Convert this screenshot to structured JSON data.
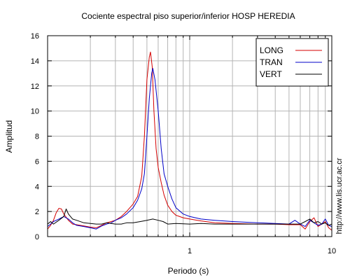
{
  "chart_data": {
    "type": "line",
    "title": "Cociente espectral piso superior/inferior  HOSP HEREDIA",
    "xlabel": "Periodo (s)",
    "ylabel": "Amplitud",
    "x_scale": "log",
    "xlim": [
      0.1,
      10
    ],
    "ylim": [
      0,
      16
    ],
    "yticks": [
      0,
      2,
      4,
      6,
      8,
      10,
      12,
      14,
      16
    ],
    "xtick_labels": [
      {
        "value": 1,
        "label": "1"
      },
      {
        "value": 10,
        "label": "10"
      }
    ],
    "grid": true,
    "legend": "top-right",
    "credit": "http://www.lis.ucr.ac.cr",
    "series": [
      {
        "name": "LONG",
        "color": "#d40000",
        "points": [
          [
            0.1,
            0.6
          ],
          [
            0.105,
            0.9
          ],
          [
            0.11,
            1.3
          ],
          [
            0.115,
            1.9
          ],
          [
            0.12,
            2.25
          ],
          [
            0.125,
            2.2
          ],
          [
            0.13,
            1.8
          ],
          [
            0.14,
            1.3
          ],
          [
            0.15,
            1.0
          ],
          [
            0.16,
            0.95
          ],
          [
            0.18,
            0.85
          ],
          [
            0.2,
            0.75
          ],
          [
            0.22,
            0.7
          ],
          [
            0.24,
            0.9
          ],
          [
            0.26,
            1.1
          ],
          [
            0.28,
            1.2
          ],
          [
            0.3,
            1.3
          ],
          [
            0.33,
            1.6
          ],
          [
            0.36,
            2.0
          ],
          [
            0.4,
            2.6
          ],
          [
            0.43,
            3.2
          ],
          [
            0.46,
            4.8
          ],
          [
            0.48,
            8.0
          ],
          [
            0.5,
            12.5
          ],
          [
            0.52,
            14.3
          ],
          [
            0.53,
            14.7
          ],
          [
            0.545,
            13.5
          ],
          [
            0.56,
            10.0
          ],
          [
            0.58,
            7.0
          ],
          [
            0.6,
            5.5
          ],
          [
            0.63,
            4.3
          ],
          [
            0.66,
            3.3
          ],
          [
            0.7,
            2.5
          ],
          [
            0.75,
            2.0
          ],
          [
            0.8,
            1.7
          ],
          [
            0.9,
            1.5
          ],
          [
            1.0,
            1.4
          ],
          [
            1.2,
            1.25
          ],
          [
            1.5,
            1.1
          ],
          [
            2.0,
            1.05
          ],
          [
            3.0,
            1.0
          ],
          [
            4.0,
            1.0
          ],
          [
            5.0,
            0.95
          ],
          [
            6.0,
            0.95
          ],
          [
            6.5,
            0.6
          ],
          [
            7.0,
            1.2
          ],
          [
            7.5,
            1.5
          ],
          [
            8.0,
            0.8
          ],
          [
            8.5,
            1.0
          ],
          [
            9.0,
            1.2
          ],
          [
            9.5,
            0.7
          ],
          [
            10,
            0.5
          ]
        ]
      },
      {
        "name": "TRAN",
        "color": "#0000c8",
        "points": [
          [
            0.1,
            0.8
          ],
          [
            0.105,
            1.0
          ],
          [
            0.11,
            1.2
          ],
          [
            0.12,
            1.4
          ],
          [
            0.13,
            1.6
          ],
          [
            0.14,
            1.4
          ],
          [
            0.15,
            1.1
          ],
          [
            0.16,
            0.9
          ],
          [
            0.18,
            0.8
          ],
          [
            0.2,
            0.7
          ],
          [
            0.22,
            0.6
          ],
          [
            0.24,
            0.85
          ],
          [
            0.26,
            1.0
          ],
          [
            0.28,
            1.1
          ],
          [
            0.3,
            1.3
          ],
          [
            0.33,
            1.5
          ],
          [
            0.36,
            1.8
          ],
          [
            0.4,
            2.3
          ],
          [
            0.43,
            2.9
          ],
          [
            0.46,
            3.8
          ],
          [
            0.48,
            5.0
          ],
          [
            0.5,
            8.0
          ],
          [
            0.52,
            11.0
          ],
          [
            0.54,
            13.0
          ],
          [
            0.55,
            13.4
          ],
          [
            0.57,
            12.5
          ],
          [
            0.6,
            10.0
          ],
          [
            0.63,
            7.0
          ],
          [
            0.66,
            5.0
          ],
          [
            0.7,
            4.0
          ],
          [
            0.75,
            3.0
          ],
          [
            0.8,
            2.3
          ],
          [
            0.9,
            1.8
          ],
          [
            1.0,
            1.6
          ],
          [
            1.2,
            1.4
          ],
          [
            1.5,
            1.3
          ],
          [
            2.0,
            1.2
          ],
          [
            3.0,
            1.1
          ],
          [
            4.0,
            1.05
          ],
          [
            5.0,
            1.0
          ],
          [
            5.5,
            1.3
          ],
          [
            6.0,
            1.0
          ],
          [
            6.5,
            0.8
          ],
          [
            7.0,
            1.3
          ],
          [
            7.5,
            1.1
          ],
          [
            8.0,
            0.9
          ],
          [
            8.5,
            1.0
          ],
          [
            9.0,
            1.4
          ],
          [
            9.5,
            0.9
          ],
          [
            10,
            0.8
          ]
        ]
      },
      {
        "name": "VERT",
        "color": "#000000",
        "points": [
          [
            0.1,
            1.0
          ],
          [
            0.105,
            1.2
          ],
          [
            0.11,
            1.0
          ],
          [
            0.12,
            1.3
          ],
          [
            0.13,
            1.6
          ],
          [
            0.135,
            2.2
          ],
          [
            0.14,
            1.8
          ],
          [
            0.15,
            1.4
          ],
          [
            0.16,
            1.3
          ],
          [
            0.18,
            1.1
          ],
          [
            0.2,
            1.05
          ],
          [
            0.22,
            1.0
          ],
          [
            0.24,
            1.0
          ],
          [
            0.26,
            1.1
          ],
          [
            0.28,
            1.05
          ],
          [
            0.3,
            1.0
          ],
          [
            0.33,
            1.0
          ],
          [
            0.36,
            1.1
          ],
          [
            0.4,
            1.1
          ],
          [
            0.45,
            1.2
          ],
          [
            0.5,
            1.3
          ],
          [
            0.55,
            1.4
          ],
          [
            0.6,
            1.3
          ],
          [
            0.65,
            1.2
          ],
          [
            0.7,
            1.0
          ],
          [
            0.8,
            1.05
          ],
          [
            1.0,
            1.0
          ],
          [
            1.2,
            1.05
          ],
          [
            1.5,
            1.0
          ],
          [
            2.0,
            1.0
          ],
          [
            3.0,
            1.0
          ],
          [
            4.0,
            1.0
          ],
          [
            5.0,
            1.0
          ],
          [
            6.0,
            1.0
          ],
          [
            6.5,
            1.2
          ],
          [
            7.0,
            1.4
          ],
          [
            7.5,
            1.1
          ],
          [
            8.0,
            1.2
          ],
          [
            8.5,
            1.0
          ],
          [
            9.0,
            1.1
          ],
          [
            9.5,
            0.9
          ],
          [
            10,
            1.0
          ]
        ]
      }
    ]
  }
}
